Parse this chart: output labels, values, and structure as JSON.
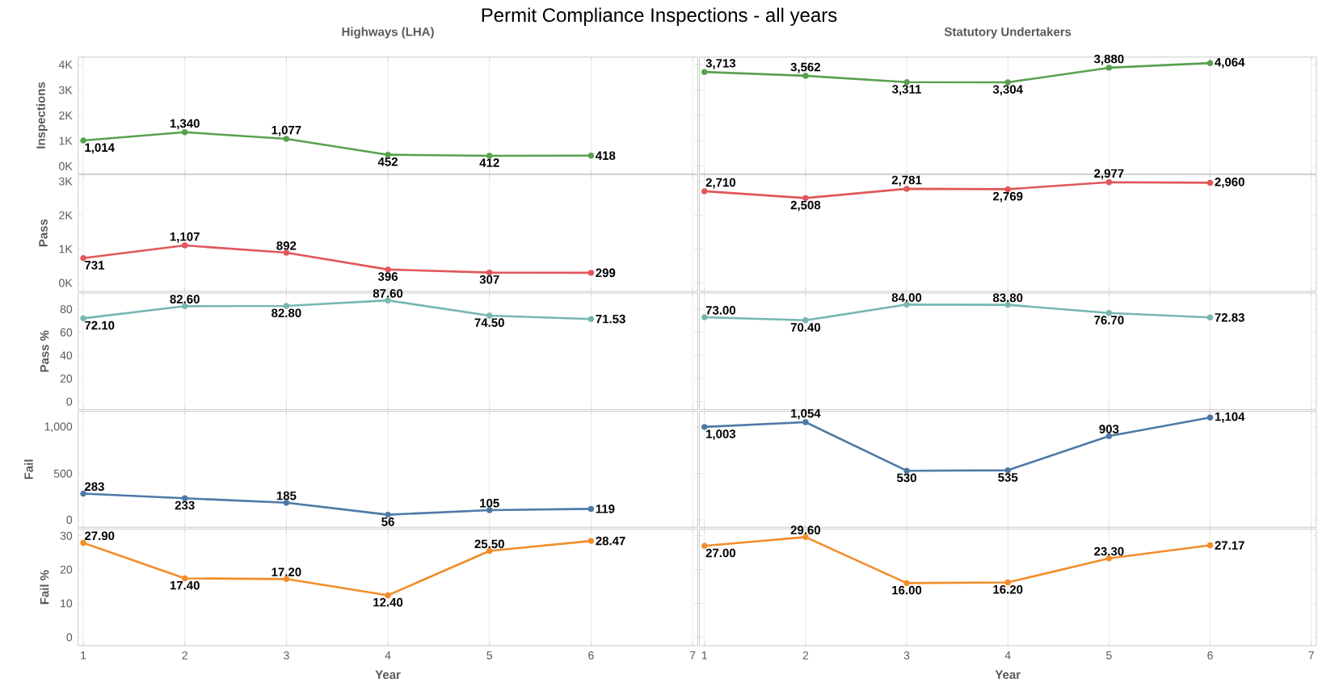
{
  "chart_data": [
    {
      "type": "line",
      "title": "Highways (LHA)",
      "ylabel": "Inspections",
      "annotations": [
        "Permit Compliance Inspections - all years"
      ],
      "x": [
        1,
        2,
        3,
        4,
        5,
        6
      ],
      "xlim": [
        0.95,
        7.05
      ],
      "xticks": [
        1,
        2,
        3,
        4,
        5,
        6,
        7
      ],
      "ylim": [
        -300,
        4300
      ],
      "yticks": [
        {
          "value": 0,
          "label": "0K"
        },
        {
          "value": 1000,
          "label": "1K"
        },
        {
          "value": 2000,
          "label": "2K"
        },
        {
          "value": 3000,
          "label": "3K"
        },
        {
          "value": 4000,
          "label": "4K"
        }
      ],
      "tick_labels": "y",
      "grid": "x",
      "marker": "circle",
      "series": [
        {
          "color": "#59a14f",
          "values": [
            1014,
            1340,
            1077,
            452,
            412,
            418
          ],
          "value_labels": [
            "1,014",
            "1,340",
            "1,077",
            "452",
            "412",
            "418"
          ]
        }
      ]
    },
    {
      "type": "line",
      "title": "Statutory Undertakers",
      "x": [
        1,
        2,
        3,
        4,
        5,
        6
      ],
      "xlim": [
        0.95,
        7.05
      ],
      "xticks": [
        1,
        2,
        3,
        4,
        5,
        6,
        7
      ],
      "ylim": [
        -300,
        4300
      ],
      "yticks": [
        0,
        1000,
        2000,
        3000,
        4000
      ],
      "tick_labels": false,
      "grid": "x",
      "marker": "circle",
      "series": [
        {
          "color": "#59a14f",
          "values": [
            3713,
            3562,
            3311,
            3304,
            3880,
            4064
          ],
          "value_labels": [
            "3,713",
            "3,562",
            "3,311",
            "3,304",
            "3,880",
            "4,064"
          ]
        }
      ]
    },
    {
      "type": "line",
      "ylabel": "Pass",
      "x": [
        1,
        2,
        3,
        4,
        5,
        6
      ],
      "xlim": [
        0.95,
        7.05
      ],
      "xticks": [
        1,
        2,
        3,
        4,
        5,
        6,
        7
      ],
      "ylim": [
        -250,
        3200
      ],
      "yticks": [
        {
          "value": 0,
          "label": "0K"
        },
        {
          "value": 1000,
          "label": "1K"
        },
        {
          "value": 2000,
          "label": "2K"
        },
        {
          "value": 3000,
          "label": "3K"
        }
      ],
      "tick_labels": "y",
      "grid": "x",
      "marker": "circle",
      "series": [
        {
          "color": "#e15759",
          "values": [
            731,
            1107,
            892,
            396,
            307,
            299
          ],
          "value_labels": [
            "731",
            "1,107",
            "892",
            "396",
            "307",
            "299"
          ]
        }
      ]
    },
    {
      "type": "line",
      "x": [
        1,
        2,
        3,
        4,
        5,
        6
      ],
      "xlim": [
        0.95,
        7.05
      ],
      "xticks": [
        1,
        2,
        3,
        4,
        5,
        6,
        7
      ],
      "ylim": [
        -250,
        3200
      ],
      "yticks": [
        0,
        1000,
        2000,
        3000
      ],
      "tick_labels": false,
      "grid": "x",
      "marker": "circle",
      "series": [
        {
          "color": "#e15759",
          "values": [
            2710,
            2508,
            2781,
            2769,
            2977,
            2960
          ],
          "value_labels": [
            "2,710",
            "2,508",
            "2,781",
            "2,769",
            "2,977",
            "2,960"
          ]
        }
      ]
    },
    {
      "type": "line",
      "ylabel": "Pass %",
      "x": [
        1,
        2,
        3,
        4,
        5,
        6
      ],
      "xlim": [
        0.95,
        7.05
      ],
      "xticks": [
        1,
        2,
        3,
        4,
        5,
        6,
        7
      ],
      "ylim": [
        -7,
        94
      ],
      "yticks": [
        0,
        20,
        40,
        60,
        80
      ],
      "tick_labels": "y",
      "grid": "x",
      "marker": "circle",
      "series": [
        {
          "color": "#76b7b2",
          "values": [
            72.1,
            82.6,
            82.8,
            87.6,
            74.5,
            71.53
          ],
          "value_labels": [
            "72.10",
            "82.60",
            "82.80",
            "87.60",
            "74.50",
            "71.53"
          ]
        }
      ]
    },
    {
      "type": "line",
      "x": [
        1,
        2,
        3,
        4,
        5,
        6
      ],
      "xlim": [
        0.95,
        7.05
      ],
      "xticks": [
        1,
        2,
        3,
        4,
        5,
        6,
        7
      ],
      "ylim": [
        -7,
        94
      ],
      "yticks": [
        0,
        20,
        40,
        60,
        80
      ],
      "tick_labels": false,
      "grid": "x",
      "marker": "circle",
      "series": [
        {
          "color": "#76b7b2",
          "values": [
            73.0,
            70.4,
            84.0,
            83.8,
            76.7,
            72.83
          ],
          "value_labels": [
            "73.00",
            "70.40",
            "84.00",
            "83.80",
            "76.70",
            "72.83"
          ]
        }
      ]
    },
    {
      "type": "line",
      "ylabel": "Fail",
      "x": [
        1,
        2,
        3,
        4,
        5,
        6
      ],
      "xlim": [
        0.95,
        7.05
      ],
      "xticks": [
        1,
        2,
        3,
        4,
        5,
        6,
        7
      ],
      "ylim": [
        -80,
        1170
      ],
      "yticks": [
        0,
        500,
        {
          "value": 1000,
          "label": "1,000"
        }
      ],
      "tick_labels": "y",
      "grid": "x",
      "marker": "circle",
      "series": [
        {
          "color": "#4e79a7",
          "values": [
            283,
            233,
            185,
            56,
            105,
            119
          ],
          "value_labels": [
            "283",
            "233",
            "185",
            "56",
            "105",
            "119"
          ]
        }
      ]
    },
    {
      "type": "line",
      "x": [
        1,
        2,
        3,
        4,
        5,
        6
      ],
      "xlim": [
        0.95,
        7.05
      ],
      "xticks": [
        1,
        2,
        3,
        4,
        5,
        6,
        7
      ],
      "ylim": [
        -80,
        1170
      ],
      "yticks": [
        0,
        500,
        1000
      ],
      "tick_labels": false,
      "grid": "x",
      "marker": "circle",
      "series": [
        {
          "color": "#4e79a7",
          "values": [
            1003,
            1054,
            530,
            535,
            903,
            1104
          ],
          "value_labels": [
            "1,003",
            "1,054",
            "530",
            "535",
            "903",
            "1,104"
          ]
        }
      ]
    },
    {
      "type": "line",
      "ylabel": "Fail %",
      "xlabel": "Year",
      "x": [
        1,
        2,
        3,
        4,
        5,
        6
      ],
      "xlim": [
        0.95,
        7.05
      ],
      "xticks": [
        1,
        2,
        3,
        4,
        5,
        6,
        7
      ],
      "ylim": [
        -2.5,
        32
      ],
      "yticks": [
        0,
        10,
        20,
        30
      ],
      "grid": "x",
      "marker": "circle",
      "series": [
        {
          "color": "#f28e2b",
          "values": [
            27.9,
            17.4,
            17.2,
            12.4,
            25.5,
            28.47
          ],
          "value_labels": [
            "27.90",
            "17.40",
            "17.20",
            "12.40",
            "25.50",
            "28.47"
          ]
        }
      ]
    },
    {
      "type": "line",
      "xlabel": "Year",
      "x": [
        1,
        2,
        3,
        4,
        5,
        6
      ],
      "xlim": [
        0.95,
        7.05
      ],
      "xticks": [
        1,
        2,
        3,
        4,
        5,
        6,
        7
      ],
      "ylim": [
        -2.5,
        32
      ],
      "yticks": [
        0,
        10,
        20,
        30
      ],
      "tick_labels": "x",
      "grid": "x",
      "marker": "circle",
      "series": [
        {
          "color": "#f28e2b",
          "values": [
            27.0,
            29.6,
            16.0,
            16.2,
            23.3,
            27.17
          ],
          "value_labels": [
            "27.00",
            "29.60",
            "16.00",
            "16.20",
            "23.30",
            "27.17"
          ]
        }
      ]
    }
  ]
}
